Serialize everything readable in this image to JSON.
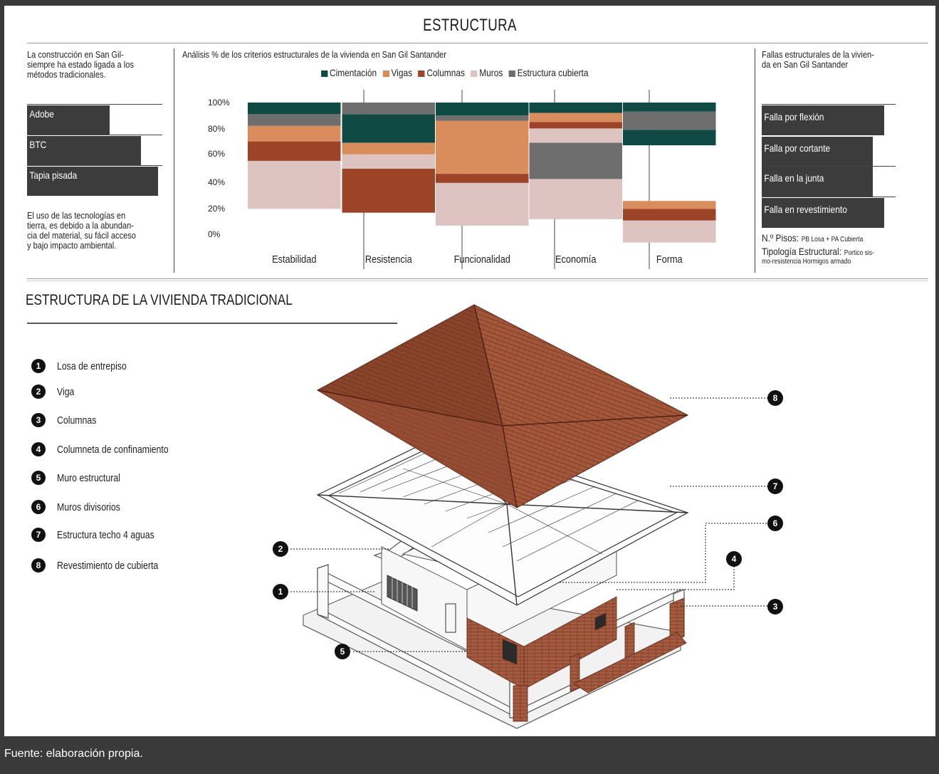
{
  "title": "ESTRUCTURA",
  "intro": {
    "lines": [
      "La construcción en San Gil-",
      "siempre ha estado ligada a los",
      "métodos tradicionales."
    ]
  },
  "materials": {
    "labels": [
      "Adobe",
      "BTC",
      "Tapia pisada"
    ]
  },
  "tech_note": {
    "lines": [
      "El uso de las tecnologías en",
      "tierra,  es debido a la abundan-",
      "cia del material, su fácil acceso",
      "y bajo impacto ambiental."
    ]
  },
  "chart_data": {
    "type": "bar",
    "title": "Análisis % de los criterios estructurales de la vivienda en San Gil Santander",
    "categories": [
      "Estabilidad",
      "Resistencia",
      "Funcionalidad",
      "Economía",
      "Forma"
    ],
    "ytick_labels": [
      "100%",
      "80%",
      "60%",
      "40%",
      "20%",
      "0%"
    ],
    "ylim": [
      0,
      100
    ],
    "legend": {
      "placement": "top",
      "entries": [
        "Cimentación",
        "Vigas",
        "Columnas",
        "Muros",
        "Estructura cubierta"
      ]
    },
    "series_colors": {
      "Cimentación": "#0f4a45",
      "Vigas": "#d98c5c",
      "Columnas": "#9c4328",
      "Muros": "#ddc4c0",
      "Estructura cubierta": "#6e6e6e"
    },
    "columns": [
      {
        "category": "Estabilidad",
        "segments": [
          {
            "series": "Muros",
            "from": 18,
            "to": 55
          },
          {
            "series": "Columnas",
            "from": 55,
            "to": 70
          },
          {
            "series": "Vigas",
            "from": 70,
            "to": 82
          },
          {
            "series": "Estructura cubierta",
            "from": 82,
            "to": 91
          },
          {
            "series": "Cimentación",
            "from": 91,
            "to": 100
          }
        ]
      },
      {
        "category": "Resistencia",
        "segments": [
          {
            "series": "Columnas",
            "from": 15,
            "to": 49
          },
          {
            "series": "Muros",
            "from": 49,
            "to": 60
          },
          {
            "series": "Vigas",
            "from": 60,
            "to": 69
          },
          {
            "series": "Cimentación",
            "from": 69,
            "to": 91
          },
          {
            "series": "Estructura cubierta",
            "from": 91,
            "to": 100
          }
        ]
      },
      {
        "category": "Funcionalidad",
        "segments": [
          {
            "series": "Muros",
            "from": 5,
            "to": 38
          },
          {
            "series": "Columnas",
            "from": 38,
            "to": 45
          },
          {
            "series": "Vigas",
            "from": 45,
            "to": 86
          },
          {
            "series": "Estructura cubierta",
            "from": 86,
            "to": 90
          },
          {
            "series": "Cimentación",
            "from": 90,
            "to": 100
          }
        ]
      },
      {
        "category": "Economía",
        "segments": [
          {
            "series": "Muros",
            "from": 10,
            "to": 41
          },
          {
            "series": "Estructura cubierta",
            "from": 41,
            "to": 69
          },
          {
            "series": "Muros",
            "from": 69,
            "to": 80
          },
          {
            "series": "Columnas",
            "from": 80,
            "to": 85
          },
          {
            "series": "Vigas",
            "from": 85,
            "to": 92
          },
          {
            "series": "Cimentación",
            "from": 92,
            "to": 100
          }
        ]
      },
      {
        "category": "Forma",
        "segments": [
          {
            "series": "Muros",
            "from": -8,
            "to": 9
          },
          {
            "series": "Columnas",
            "from": 9,
            "to": 18
          },
          {
            "series": "Vigas",
            "from": 18,
            "to": 24
          },
          {
            "series": "Cimentación",
            "from": 67,
            "to": 79
          },
          {
            "series": "Estructura cubierta",
            "from": 79,
            "to": 93
          },
          {
            "series": "Cimentación",
            "from": 93,
            "to": 100
          }
        ]
      }
    ]
  },
  "failures": {
    "heading_lines": [
      "Fallas estructurales de la vivien-",
      "da en San Gil Santander"
    ],
    "items": [
      "Falla por flexión",
      "Falla por cortante",
      "Falla en la junta",
      "Falla en revestimiento"
    ],
    "pisos_label": "N.º Pisos:",
    "pisos_value": "PB Losa + PA Cubierta",
    "tipologia_label": "Tipología Estructural:",
    "tipologia_value_1": "Portico sis-",
    "tipologia_value_2": "mo-resistencia Hormigos armado"
  },
  "section": {
    "title": "ESTRUCTURA DE LA VIVIENDA TRADICIONAL",
    "items": [
      {
        "num": "1",
        "label": "Losa de entrepiso"
      },
      {
        "num": "2",
        "label": "Viga"
      },
      {
        "num": "3",
        "label": "Columnas"
      },
      {
        "num": "4",
        "label": "Columneta de confinamiento"
      },
      {
        "num": "5",
        "label": "Muro estructural"
      },
      {
        "num": "6",
        "label": "Muros divisorios"
      },
      {
        "num": "7",
        "label": "Estructura techo 4 aguas"
      },
      {
        "num": "8",
        "label": "Revestimiento de cubierta"
      }
    ]
  },
  "colors": {
    "roof": "#a4573a",
    "roof_dark": "#5e2a1a",
    "brick": "#a35a3f",
    "footer_bg": "#3a3a3a"
  },
  "footer": "Fuente: elaboración propia."
}
